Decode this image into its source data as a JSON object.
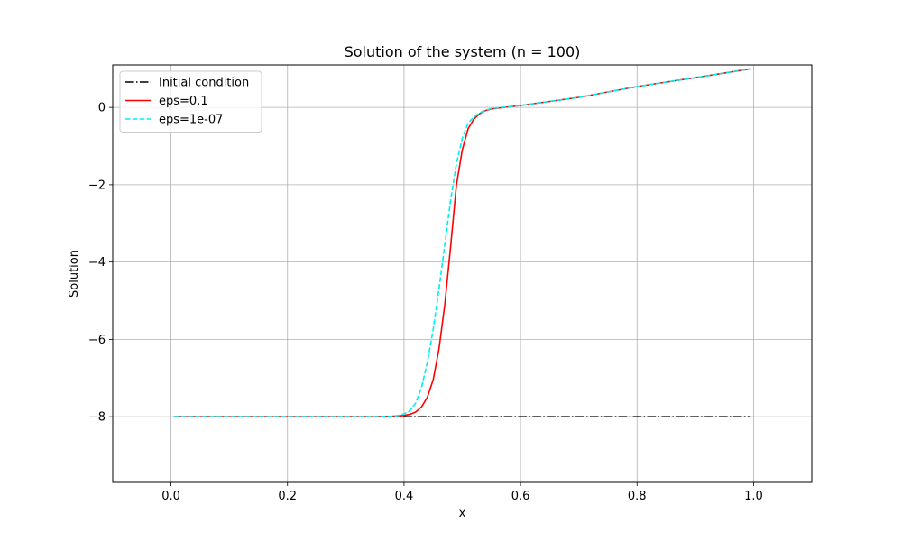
{
  "chart_data": {
    "type": "line",
    "title": "Solution of the system (n = 100)",
    "xlabel": "x",
    "ylabel": "Solution",
    "xlim": [
      -0.1,
      1.1
    ],
    "ylim": [
      -9.7,
      1.1
    ],
    "xticks": [
      0.0,
      0.2,
      0.4,
      0.6,
      0.8,
      1.0
    ],
    "xtick_labels": [
      "0.0",
      "0.2",
      "0.4",
      "0.6",
      "0.8",
      "1.0"
    ],
    "yticks": [
      -8,
      -6,
      -4,
      -2,
      0
    ],
    "ytick_labels": [
      "−8",
      "−6",
      "−4",
      "−2",
      "0"
    ],
    "grid": true,
    "legend_position": "top-left",
    "series": [
      {
        "name": "Initial condition",
        "color": "#000000",
        "style": "dashdot",
        "x": [
          0.005,
          0.995
        ],
        "y": [
          -8.0,
          -8.0
        ]
      },
      {
        "name": "eps=0.1",
        "color": "#ff0000",
        "style": "solid",
        "x": [
          0.005,
          0.3,
          0.35,
          0.38,
          0.4,
          0.41,
          0.42,
          0.43,
          0.44,
          0.45,
          0.46,
          0.47,
          0.48,
          0.49,
          0.5,
          0.51,
          0.52,
          0.53,
          0.54,
          0.55,
          0.56,
          0.6,
          0.7,
          0.8,
          0.9,
          0.995
        ],
        "y": [
          -8.0,
          -8.0,
          -8.0,
          -7.99,
          -7.97,
          -7.94,
          -7.88,
          -7.75,
          -7.5,
          -7.05,
          -6.25,
          -5.1,
          -3.6,
          -2.0,
          -1.1,
          -0.55,
          -0.3,
          -0.16,
          -0.08,
          -0.04,
          -0.02,
          0.05,
          0.26,
          0.54,
          0.77,
          1.0
        ]
      },
      {
        "name": "eps=1e-07",
        "color": "#00eeee",
        "style": "dashed",
        "x": [
          0.005,
          0.3,
          0.35,
          0.38,
          0.39,
          0.4,
          0.41,
          0.42,
          0.43,
          0.44,
          0.45,
          0.46,
          0.47,
          0.48,
          0.49,
          0.5,
          0.51,
          0.52,
          0.53,
          0.54,
          0.55,
          0.56,
          0.6,
          0.7,
          0.8,
          0.9,
          0.995
        ],
        "y": [
          -8.0,
          -8.0,
          -8.0,
          -7.99,
          -7.97,
          -7.93,
          -7.85,
          -7.65,
          -7.25,
          -6.6,
          -5.75,
          -4.7,
          -3.55,
          -2.4,
          -1.45,
          -0.8,
          -0.4,
          -0.25,
          -0.14,
          -0.07,
          -0.03,
          -0.01,
          0.05,
          0.26,
          0.54,
          0.77,
          1.0
        ]
      }
    ]
  }
}
